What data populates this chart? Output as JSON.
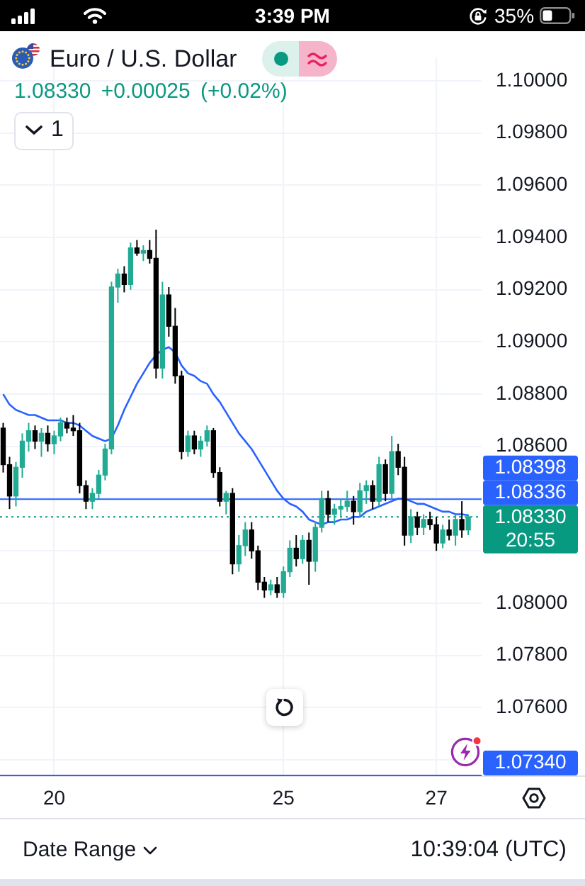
{
  "chart_data": {
    "type": "candlestick",
    "title": "Euro / U.S. Dollar",
    "subtitle": "1.08330 +0.00025 (+0.02%)",
    "categories": [
      null,
      null,
      null,
      null,
      null,
      null,
      null,
      null,
      "20",
      null,
      null,
      null,
      null,
      null,
      null,
      null,
      null,
      null,
      null,
      null,
      null,
      null,
      null,
      null,
      null,
      null,
      null,
      null,
      null,
      null,
      null,
      null,
      null,
      null,
      null,
      null,
      null,
      null,
      null,
      null,
      null,
      null,
      null,
      null,
      "25",
      null,
      null,
      null,
      null,
      null,
      null,
      null,
      null,
      null,
      null,
      null,
      null,
      null,
      null,
      null,
      null,
      null,
      null,
      null,
      null,
      null,
      null,
      null,
      "27",
      null,
      null,
      null,
      null,
      null
    ],
    "ohlc": [
      [
        1.0867,
        1.0869,
        1.085,
        1.0853
      ],
      [
        1.0853,
        1.0856,
        1.0836,
        1.0841
      ],
      [
        1.0841,
        1.0854,
        1.0837,
        1.0852
      ],
      [
        1.0852,
        1.0865,
        1.0848,
        1.0862
      ],
      [
        1.0862,
        1.0869,
        1.0858,
        1.0866
      ],
      [
        1.0866,
        1.0868,
        1.0859,
        1.0862
      ],
      [
        1.0862,
        1.0867,
        1.0856,
        1.0865
      ],
      [
        1.0865,
        1.0868,
        1.0858,
        1.0861
      ],
      [
        1.0861,
        1.0866,
        1.0857,
        1.0864
      ],
      [
        1.0864,
        1.0871,
        1.0862,
        1.0869
      ],
      [
        1.0869,
        1.0871,
        1.0865,
        1.0867
      ],
      [
        1.0867,
        1.0872,
        1.0864,
        1.0866
      ],
      [
        1.0866,
        1.0869,
        1.0842,
        1.0845
      ],
      [
        1.0845,
        1.0847,
        1.0836,
        1.0839
      ],
      [
        1.0839,
        1.0844,
        1.0836,
        1.0842
      ],
      [
        1.0842,
        1.0851,
        1.084,
        1.0849
      ],
      [
        1.0849,
        1.0861,
        1.0847,
        1.0859
      ],
      [
        1.0859,
        1.0923,
        1.0857,
        1.0921
      ],
      [
        1.0921,
        1.0928,
        1.0915,
        1.0926
      ],
      [
        1.0926,
        1.0929,
        1.0919,
        1.0922
      ],
      [
        1.0922,
        1.0938,
        1.092,
        1.0936
      ],
      [
        1.0936,
        1.0939,
        1.0933,
        1.0934
      ],
      [
        1.0934,
        1.0937,
        1.0931,
        1.0935
      ],
      [
        1.0935,
        1.0939,
        1.093,
        1.0932
      ],
      [
        1.0932,
        1.0943,
        1.0886,
        1.089
      ],
      [
        1.089,
        1.0923,
        1.0886,
        1.0918
      ],
      [
        1.0918,
        1.0921,
        1.0902,
        1.0906
      ],
      [
        1.0906,
        1.0913,
        1.0884,
        1.0887
      ],
      [
        1.0887,
        1.0889,
        1.0855,
        1.0858
      ],
      [
        1.0858,
        1.0866,
        1.0856,
        1.0864
      ],
      [
        1.0864,
        1.0866,
        1.0857,
        1.0859
      ],
      [
        1.0859,
        1.0864,
        1.0856,
        1.0862
      ],
      [
        1.0862,
        1.0868,
        1.086,
        1.0866
      ],
      [
        1.0866,
        1.0867,
        1.0848,
        1.085
      ],
      [
        1.085,
        1.0852,
        1.0837,
        1.0839
      ],
      [
        1.0839,
        1.0843,
        1.0834,
        1.0842
      ],
      [
        1.0842,
        1.0844,
        1.0811,
        1.0815
      ],
      [
        1.0815,
        1.0826,
        1.0812,
        1.0822
      ],
      [
        1.0822,
        1.0831,
        1.0818,
        1.0828
      ],
      [
        1.0828,
        1.0831,
        1.0817,
        1.082
      ],
      [
        1.082,
        1.0822,
        1.0805,
        1.0808
      ],
      [
        1.0808,
        1.081,
        1.0802,
        1.0805
      ],
      [
        1.0805,
        1.0809,
        1.0803,
        1.0807
      ],
      [
        1.0807,
        1.081,
        1.0802,
        1.0804
      ],
      [
        1.0804,
        1.0814,
        1.0802,
        1.0812
      ],
      [
        1.0812,
        1.0824,
        1.081,
        1.0821
      ],
      [
        1.0821,
        1.0826,
        1.0814,
        1.0817
      ],
      [
        1.0817,
        1.0826,
        1.0815,
        1.0824
      ],
      [
        1.0824,
        1.0827,
        1.0807,
        1.0816
      ],
      [
        1.0816,
        1.0831,
        1.0812,
        1.0829
      ],
      [
        1.0829,
        1.0843,
        1.0827,
        1.084
      ],
      [
        1.084,
        1.0843,
        1.0831,
        1.0834
      ],
      [
        1.0834,
        1.0838,
        1.083,
        1.0836
      ],
      [
        1.0836,
        1.084,
        1.0833,
        1.0837
      ],
      [
        1.0837,
        1.0843,
        1.0835,
        1.0839
      ],
      [
        1.0839,
        1.0841,
        1.083,
        1.0835
      ],
      [
        1.0835,
        1.0846,
        1.0833,
        1.0843
      ],
      [
        1.0843,
        1.0847,
        1.0838,
        1.0845
      ],
      [
        1.0845,
        1.0847,
        1.0836,
        1.0839
      ],
      [
        1.0839,
        1.0856,
        1.0837,
        1.0853
      ],
      [
        1.0853,
        1.0855,
        1.0839,
        1.0842
      ],
      [
        1.0842,
        1.0864,
        1.084,
        1.0858
      ],
      [
        1.0858,
        1.0861,
        1.0849,
        1.0852
      ],
      [
        1.0852,
        1.0856,
        1.0822,
        1.0826
      ],
      [
        1.0826,
        1.0836,
        1.0823,
        1.0833
      ],
      [
        1.0833,
        1.0835,
        1.0826,
        1.0829
      ],
      [
        1.0829,
        1.0834,
        1.0826,
        1.0832
      ],
      [
        1.0832,
        1.0835,
        1.0828,
        1.083
      ],
      [
        1.083,
        1.0833,
        1.082,
        1.0823
      ],
      [
        1.0823,
        1.083,
        1.0821,
        1.0828
      ],
      [
        1.0828,
        1.0832,
        1.0824,
        1.0826
      ],
      [
        1.0826,
        1.0834,
        1.0822,
        1.0832
      ],
      [
        1.0832,
        1.0839,
        1.0825,
        1.0828
      ],
      [
        1.0828,
        1.0834,
        1.0826,
        1.0833
      ]
    ],
    "colors": [
      "#000000",
      "#000000",
      "#22ab94",
      "#22ab94",
      "#22ab94",
      "#000000",
      "#22ab94",
      "#000000",
      "#22ab94",
      "#22ab94",
      "#000000",
      "#000000",
      "#000000",
      "#000000",
      "#22ab94",
      "#22ab94",
      "#22ab94",
      "#22ab94",
      "#22ab94",
      "#000000",
      "#22ab94",
      "#000000",
      "#22ab94",
      "#000000",
      "#000000",
      "#22ab94",
      "#000000",
      "#000000",
      "#000000",
      "#22ab94",
      "#000000",
      "#22ab94",
      "#22ab94",
      "#000000",
      "#000000",
      "#22ab94",
      "#000000",
      "#22ab94",
      "#22ab94",
      "#000000",
      "#000000",
      "#000000",
      "#22ab94",
      "#000000",
      "#22ab94",
      "#22ab94",
      "#000000",
      "#22ab94",
      "#000000",
      "#22ab94",
      "#22ab94",
      "#000000",
      "#22ab94",
      "#22ab94",
      "#22ab94",
      "#000000",
      "#22ab94",
      "#22ab94",
      "#000000",
      "#22ab94",
      "#000000",
      "#22ab94",
      "#000000",
      "#000000",
      "#22ab94",
      "#000000",
      "#22ab94",
      "#000000",
      "#000000",
      "#22ab94",
      "#000000",
      "#22ab94",
      "#000000",
      "#22ab94"
    ],
    "series": [
      {
        "type": "line",
        "color": "#2962ff",
        "values": [
          1.088,
          1.0876,
          1.0874,
          1.0873,
          1.0872,
          1.0872,
          1.0871,
          1.087,
          1.087,
          1.087,
          1.0869,
          1.0869,
          1.0868,
          1.0866,
          1.0864,
          1.0863,
          1.0862,
          1.0863,
          1.0868,
          1.0874,
          1.0879,
          1.0884,
          1.0888,
          1.0892,
          1.0895,
          1.0897,
          1.0898,
          1.0896,
          1.0891,
          1.0888,
          1.0887,
          1.0885,
          1.0884,
          1.088,
          1.0877,
          1.0873,
          1.0869,
          1.0865,
          1.0862,
          1.0859,
          1.0855,
          1.0851,
          1.0847,
          1.0843,
          1.084,
          1.0838,
          1.0837,
          1.0835,
          1.0832,
          1.0831,
          1.083,
          1.0831,
          1.0831,
          1.0832,
          1.0832,
          1.0833,
          1.0833,
          1.0835,
          1.0836,
          1.0837,
          1.0838,
          1.0839,
          1.084,
          1.084,
          1.0839,
          1.0838,
          1.0838,
          1.0837,
          1.0836,
          1.0835,
          1.0835,
          1.0834,
          1.0834,
          1.08336
        ],
        "value_labels": [
          null,
          null,
          null,
          null,
          null,
          null,
          null,
          null,
          null,
          null,
          null,
          null,
          null,
          null,
          null,
          null,
          null,
          null,
          null,
          null,
          null,
          null,
          null,
          null,
          null,
          null,
          null,
          null,
          null,
          null,
          null,
          null,
          null,
          null,
          null,
          null,
          null,
          null,
          null,
          null,
          null,
          null,
          null,
          null,
          null,
          null,
          null,
          null,
          null,
          null,
          null,
          null,
          null,
          null,
          null,
          null,
          null,
          null,
          null,
          null,
          null,
          null,
          null,
          null,
          null,
          null,
          null,
          null,
          null,
          null,
          null,
          null,
          null,
          "1.08336"
        ]
      }
    ],
    "ylim": [
      1.0734,
      1.1009
    ],
    "yticks": [
      {
        "value": 1.074,
        "label": null
      },
      {
        "value": 1.076,
        "label": "1.07600"
      },
      {
        "value": 1.078,
        "label": "1.07800"
      },
      {
        "value": 1.08,
        "label": "1.08000"
      },
      {
        "value": 1.082,
        "label": null
      },
      {
        "value": 1.084,
        "label": null
      },
      {
        "value": 1.086,
        "label": "1.08600"
      },
      {
        "value": 1.088,
        "label": "1.08800"
      },
      {
        "value": 1.09,
        "label": "1.09000"
      },
      {
        "value": 1.092,
        "label": "1.09200"
      },
      {
        "value": 1.094,
        "label": "1.09400"
      },
      {
        "value": 1.096,
        "label": "1.09600"
      },
      {
        "value": 1.098,
        "label": "1.09800"
      },
      {
        "value": 1.1,
        "label": "1.10000"
      }
    ],
    "grid": true,
    "ref_lines": [
      {
        "axis": "y",
        "value": 1.08398,
        "label": "1.08398",
        "color": "#2962ff"
      },
      {
        "axis": "y",
        "value": 1.0833,
        "label": "1.08330",
        "color": "#089981",
        "line_style": "dotted"
      },
      {
        "axis": "y",
        "value": 1.0734,
        "label": "1.07340",
        "color": "#2962ff"
      }
    ],
    "annotations": [
      "3:39 PM",
      "35%",
      "1",
      "20:55",
      "Date Range",
      "10:39:04 (UTC)"
    ]
  }
}
